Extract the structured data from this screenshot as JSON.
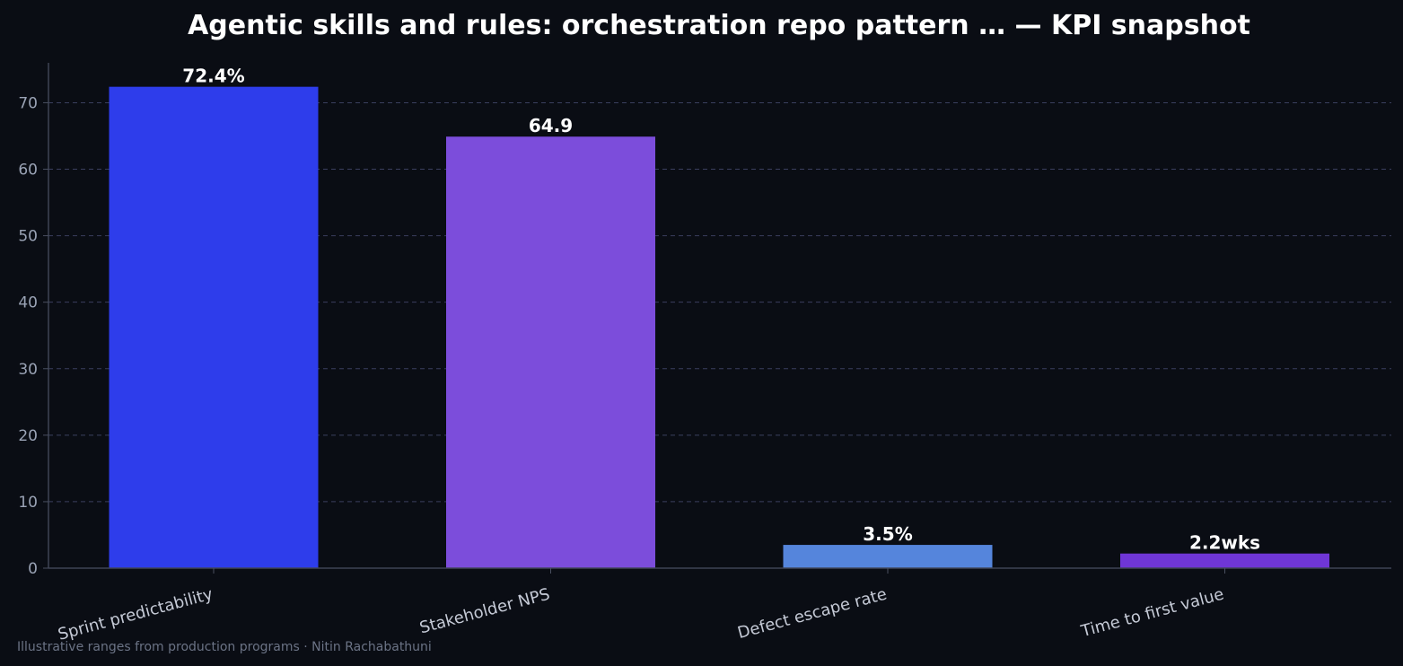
{
  "chart_data": {
    "type": "bar",
    "title": "Agentic skills and rules: orchestration repo pattern … — KPI snapshot",
    "xlabel": "",
    "ylabel": "",
    "categories": [
      "Sprint predictability",
      "Stakeholder NPS",
      "Defect escape rate",
      "Time to first value"
    ],
    "values": [
      72.4,
      64.9,
      3.5,
      2.2
    ],
    "value_labels": [
      "72.4%",
      "64.9",
      "3.5%",
      "2.2wks"
    ],
    "bar_colors": [
      "#2e3deb",
      "#7c4ddb",
      "#5585dc",
      "#6f36d6"
    ],
    "yticks": [
      0,
      10,
      20,
      30,
      40,
      50,
      60,
      70
    ],
    "ylim": [
      0,
      76
    ],
    "grid": true,
    "footnote": "Illustrative ranges from production programs · Nitin Rachabathuni"
  }
}
